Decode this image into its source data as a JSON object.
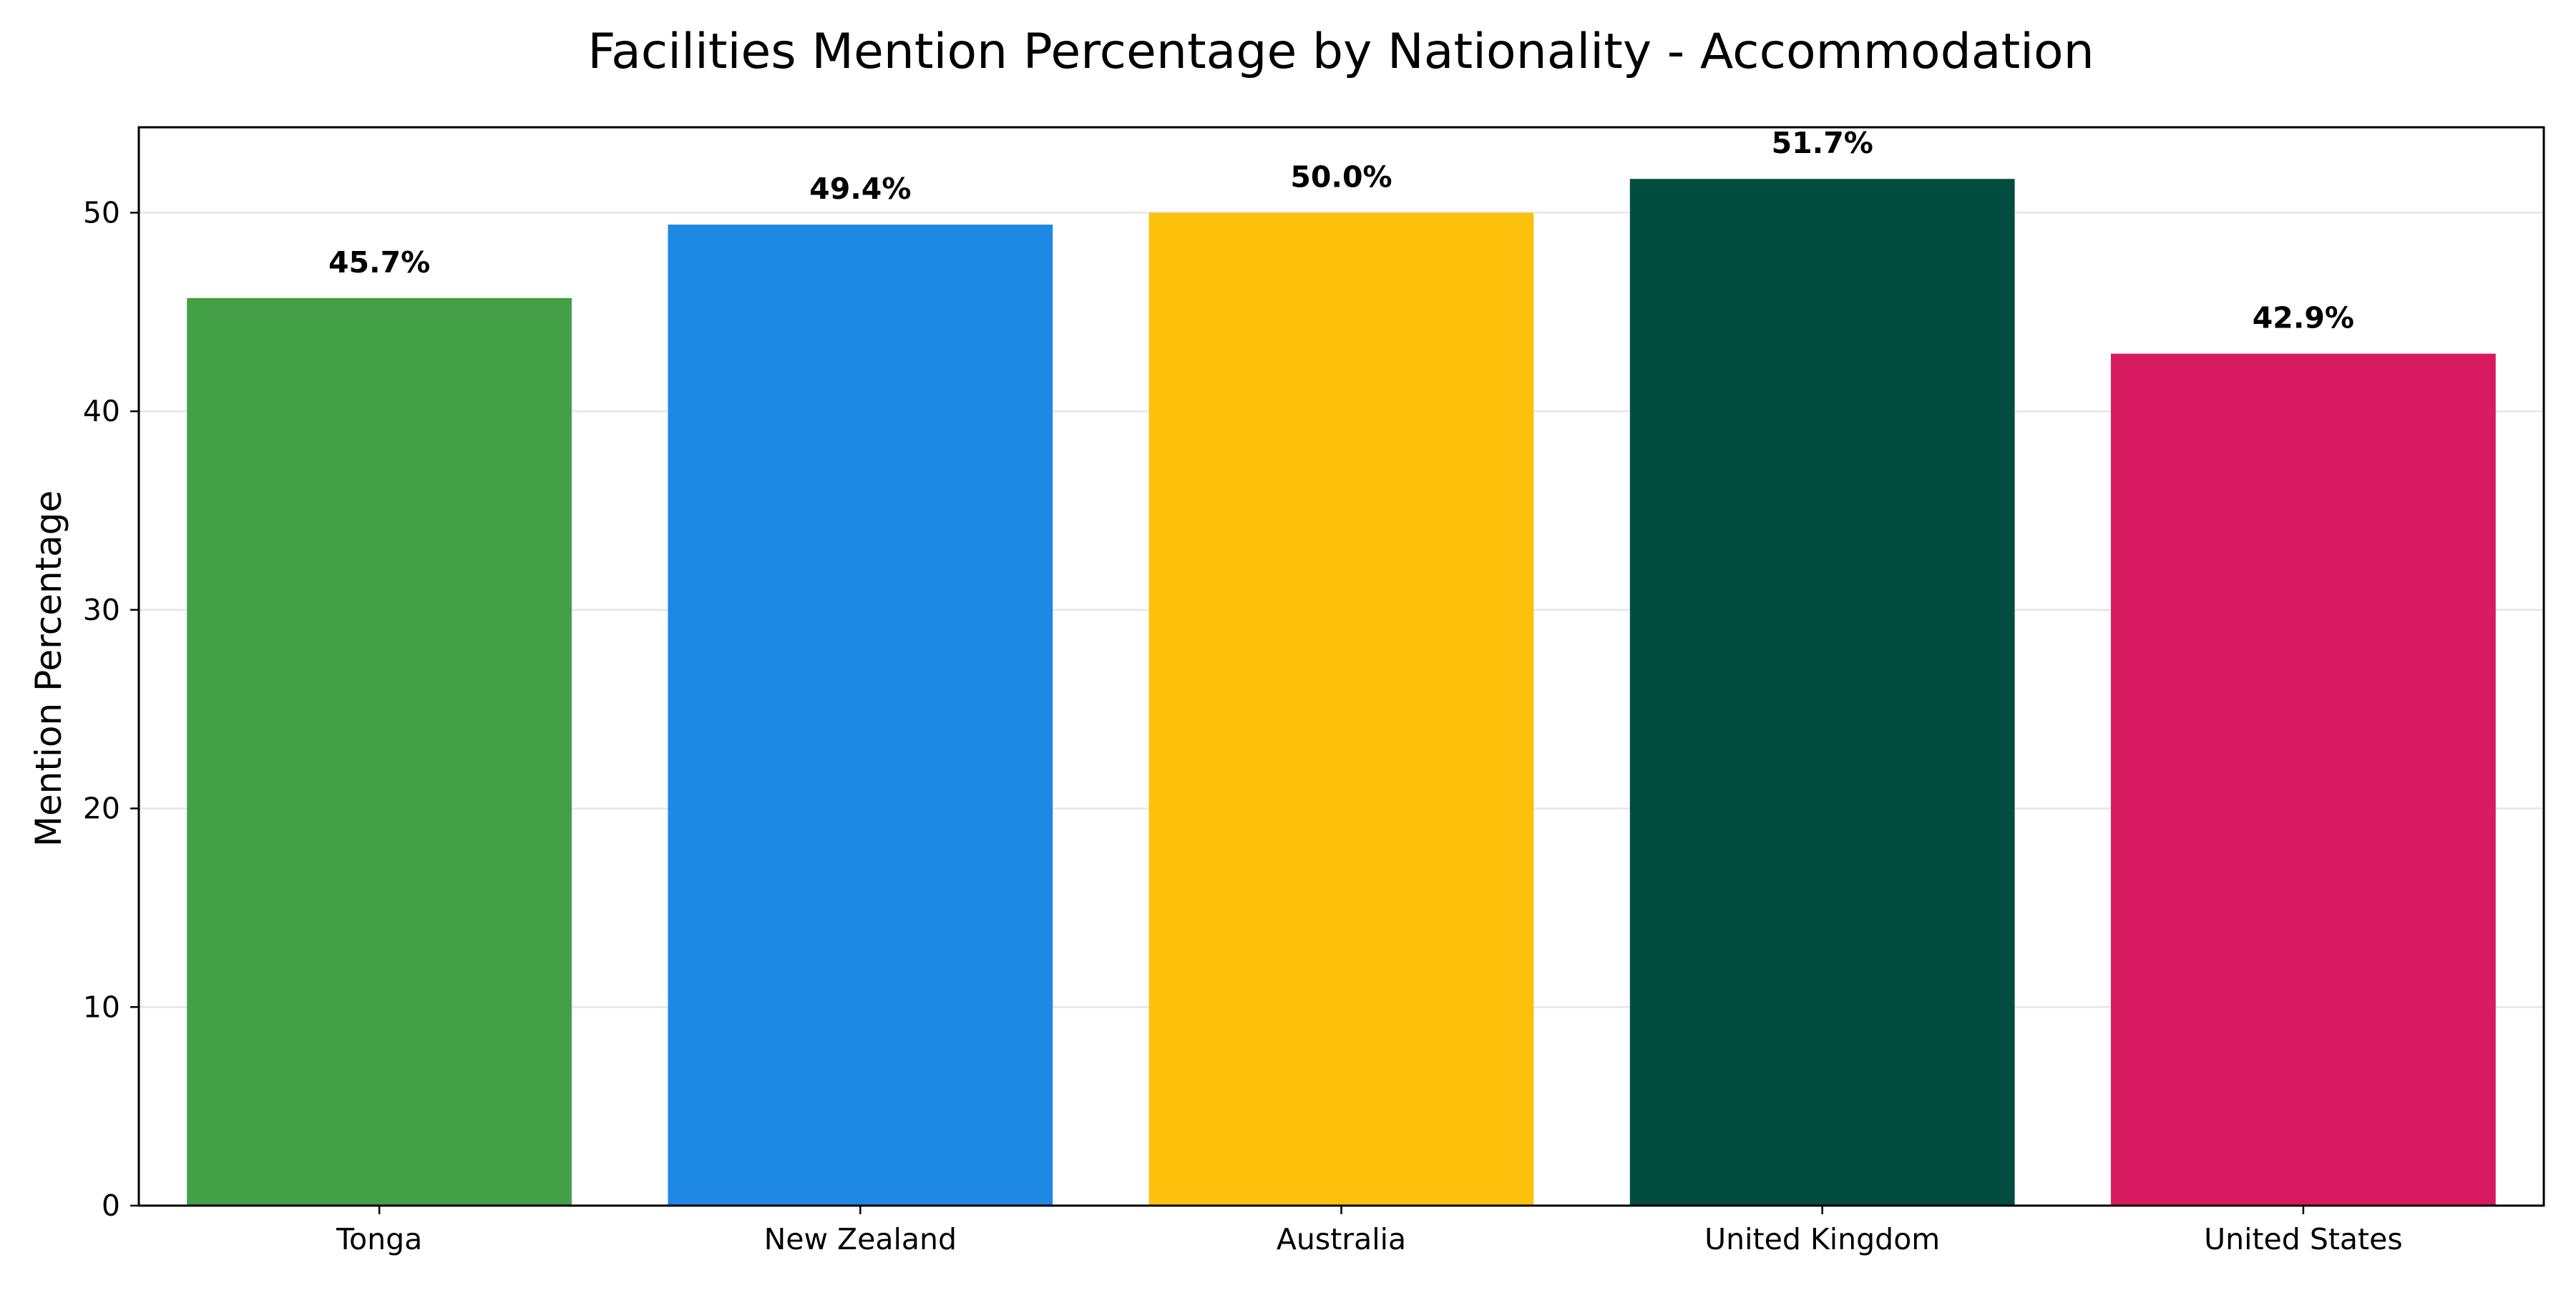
{
  "chart_data": {
    "type": "bar",
    "title": "Facilities Mention Percentage by Nationality - Accommodation",
    "xlabel": "",
    "ylabel": "Mention Percentage",
    "categories": [
      "Tonga",
      "New Zealand",
      "Australia",
      "United Kingdom",
      "United States"
    ],
    "values": [
      45.7,
      49.4,
      50.0,
      51.7,
      42.9
    ],
    "data_labels": [
      "45.7%",
      "49.4%",
      "50.0%",
      "51.7%",
      "42.9%"
    ],
    "colors": [
      "#43a047",
      "#1e88e5",
      "#fdc00b",
      "#004d40",
      "#d81b60"
    ],
    "ylim": [
      0,
      54.3
    ],
    "yticks": [
      0,
      10,
      20,
      30,
      40,
      50
    ],
    "grid": "y",
    "legend": "none"
  }
}
